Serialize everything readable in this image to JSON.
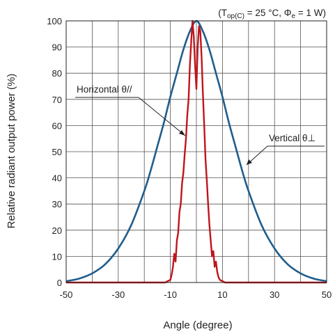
{
  "chart_data": {
    "type": "line",
    "title": "",
    "condition": {
      "open": "(T",
      "sub": "op(C)",
      "mid": " = 25 °C, Φ",
      "sub2": "e",
      "close": " = 1 W)"
    },
    "xlabel": "Angle (degree)",
    "ylabel": "Relative radiant output power (%)",
    "xlim": [
      -50,
      50
    ],
    "ylim": [
      0,
      100
    ],
    "xticks": [
      -50,
      -30,
      -10,
      10,
      30,
      50
    ],
    "yticks": [
      0,
      10,
      20,
      30,
      40,
      50,
      60,
      70,
      80,
      90,
      100
    ],
    "grid": true,
    "series": [
      {
        "name": "Vertical θ⊥",
        "color": "#1f5d8c",
        "x": [
          -50,
          -45,
          -40,
          -35,
          -30,
          -25,
          -20,
          -17.5,
          -15,
          -12.5,
          -10,
          -7.5,
          -5,
          -2.5,
          0,
          2.5,
          5,
          7.5,
          10,
          12.5,
          15,
          17.5,
          20,
          25,
          30,
          35,
          40,
          45,
          50
        ],
        "y": [
          0.5,
          1.5,
          3.5,
          7,
          13,
          22,
          35,
          43,
          52,
          61,
          71,
          80,
          89,
          96,
          100,
          96,
          89,
          80,
          71,
          61,
          52,
          43,
          35,
          22,
          13,
          7,
          3.5,
          1.5,
          0.5
        ]
      },
      {
        "name": "Horizontal θ//",
        "color": "#c0141c",
        "x": [
          -50,
          -12,
          -11,
          -10,
          -9.5,
          -9,
          -8.5,
          -8,
          -7.5,
          -7,
          -6.5,
          -6,
          -5.5,
          -5,
          -4.5,
          -4,
          -3.5,
          -3,
          -2.5,
          -2,
          -1.5,
          -1,
          -0.5,
          0,
          0.5,
          1,
          1.5,
          2,
          2.5,
          3,
          3.5,
          4,
          4.5,
          5,
          5.5,
          6,
          6.5,
          7,
          7.5,
          8,
          8.5,
          9,
          10,
          11,
          12,
          50
        ],
        "y": [
          0,
          0,
          0.5,
          1,
          3,
          6,
          11,
          8,
          16,
          19,
          27,
          30,
          38,
          42,
          49,
          55,
          64,
          70,
          83,
          92,
          100,
          94,
          83,
          74,
          90,
          98,
          96,
          86,
          72,
          60,
          47,
          39,
          30,
          22,
          16,
          10,
          12,
          6,
          8,
          4,
          2,
          1,
          0.5,
          0,
          0,
          0
        ]
      }
    ],
    "annotations": [
      {
        "text": "Horizontal θ//",
        "series": 1
      },
      {
        "text": "Vertical θ⊥",
        "series": 0
      }
    ]
  }
}
